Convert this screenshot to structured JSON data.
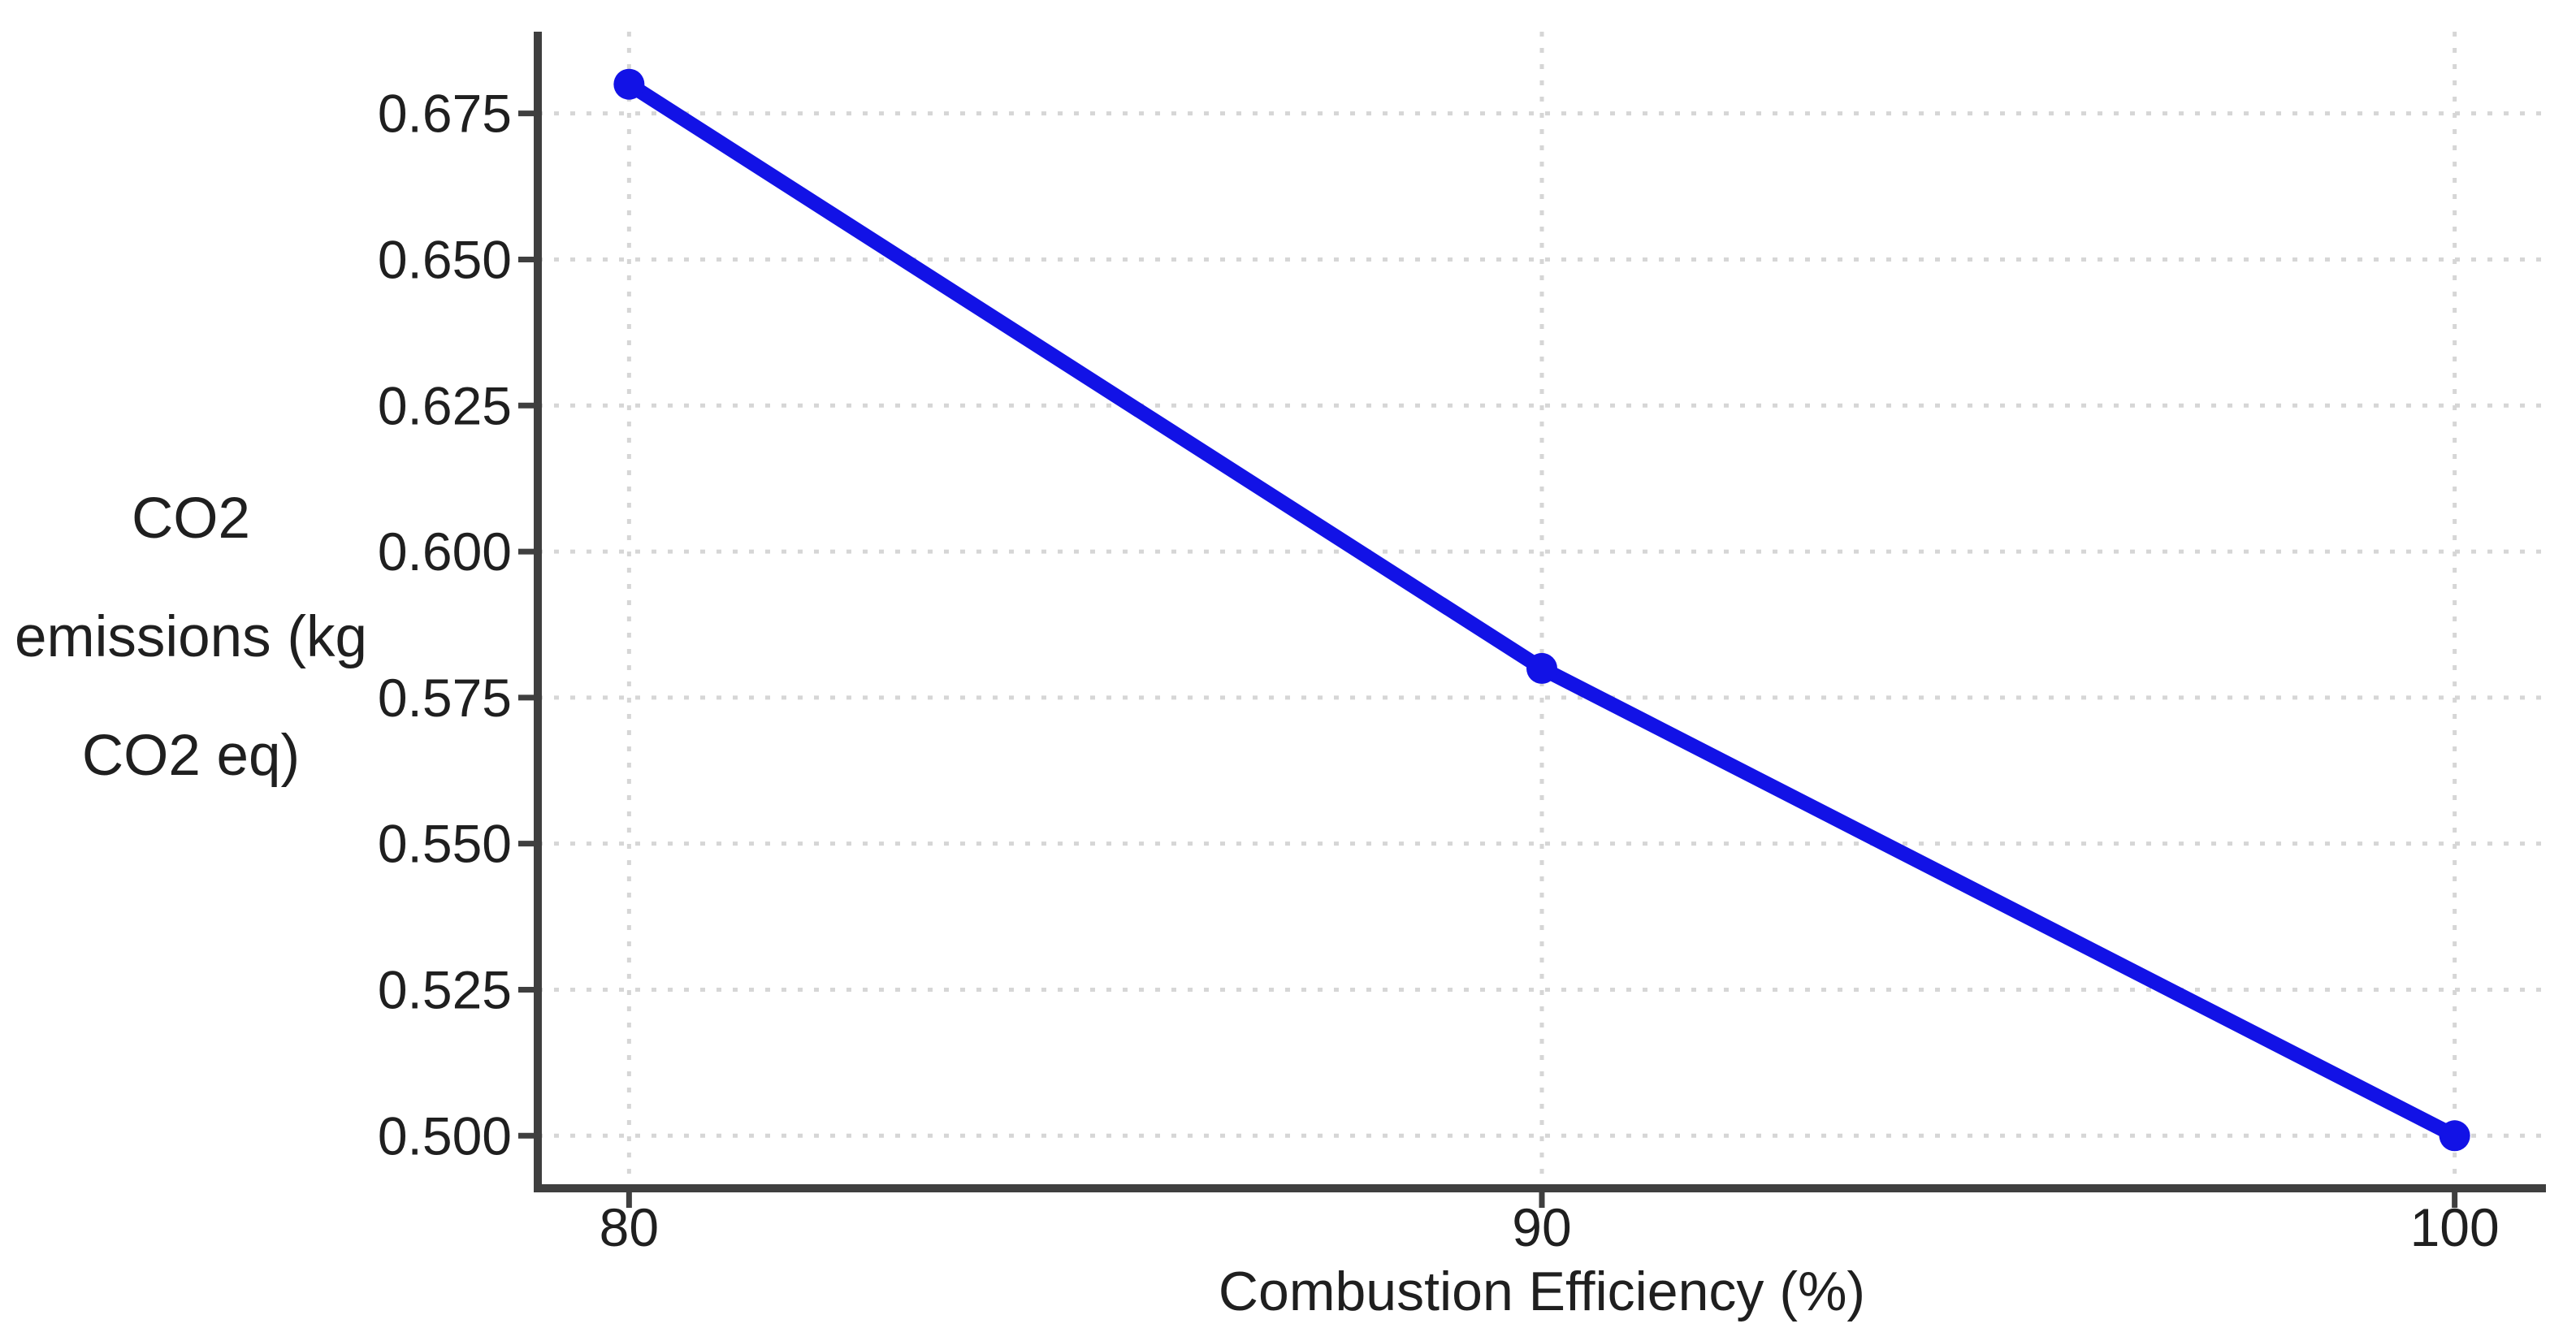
{
  "figure": {
    "background": "#ffffff"
  },
  "chart_data": {
    "type": "line",
    "title": "",
    "xlabel": "Combustion Efficiency (%)",
    "ylabel": "CO2 emissions (kg CO2 eq)",
    "ylabel_lines": [
      "CO2",
      "emissions (kg",
      "CO2 eq)"
    ],
    "x": [
      80,
      90,
      100
    ],
    "y": [
      0.68,
      0.58,
      0.5
    ],
    "xlim": [
      79,
      101
    ],
    "ylim": [
      0.491,
      0.689
    ],
    "xticks": {
      "values": [
        80,
        90,
        100
      ],
      "labels": [
        "80",
        "90",
        "100"
      ]
    },
    "yticks": {
      "values": [
        0.5,
        0.525,
        0.55,
        0.575,
        0.6,
        0.625,
        0.65,
        0.675
      ],
      "labels": [
        "0.500",
        "0.525",
        "0.550",
        "0.575",
        "0.600",
        "0.625",
        "0.650",
        "0.675"
      ]
    },
    "grid": true,
    "grid_style": "dotted",
    "legend": false,
    "styles": {
      "line_color": "#1212e6",
      "marker": "circle",
      "grid_color": "#d6d6d6",
      "axis_color": "#3f3f3f",
      "text_color": "#1f1f1f",
      "background": "#ffffff"
    }
  }
}
